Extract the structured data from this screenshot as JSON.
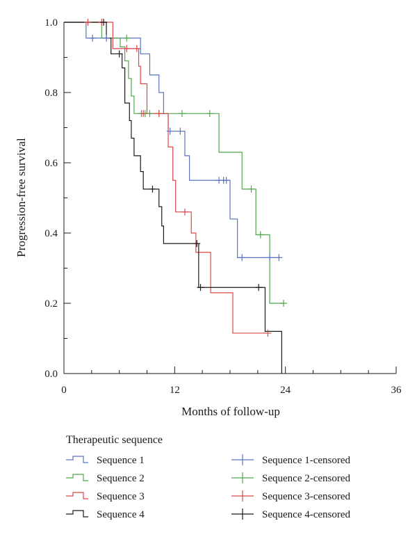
{
  "chart_data": {
    "type": "line",
    "subtype": "kaplan-meier step",
    "xlabel": "Months of follow-up",
    "ylabel": "Progression-free survival",
    "xlim": [
      0,
      36
    ],
    "ylim": [
      0,
      1
    ],
    "xticks": [
      0,
      12,
      24,
      36
    ],
    "xtick_labels": [
      "0",
      "12",
      "24",
      "36"
    ],
    "x_minor_ticks": [
      3,
      6,
      9,
      15,
      18,
      21,
      27,
      30,
      33
    ],
    "yticks": [
      0,
      0.2,
      0.4,
      0.6,
      0.8,
      1.0
    ],
    "ytick_labels": [
      "0.0",
      "0.2",
      "0.4",
      "0.6",
      "0.8",
      "1.0"
    ],
    "y_minor_ticks": [
      0.1,
      0.3,
      0.5,
      0.7,
      0.9
    ],
    "grid": false,
    "legend": {
      "title": "Therapeutic sequence",
      "placement": "bottom",
      "entries": [
        {
          "label": "Sequence 1",
          "series": 0,
          "kind": "line"
        },
        {
          "label": "Sequence 2",
          "series": 1,
          "kind": "line"
        },
        {
          "label": "Sequence 3",
          "series": 2,
          "kind": "line"
        },
        {
          "label": "Sequence 4",
          "series": 3,
          "kind": "line"
        },
        {
          "label": "Sequence 1-censored",
          "series": 0,
          "kind": "censor"
        },
        {
          "label": "Sequence 2-censored",
          "series": 1,
          "kind": "censor"
        },
        {
          "label": "Sequence 3-censored",
          "series": 2,
          "kind": "censor"
        },
        {
          "label": "Sequence 4-censored",
          "series": 3,
          "kind": "censor"
        }
      ]
    },
    "series": [
      {
        "color": "#5a73c4",
        "steps": [
          [
            0,
            1.0
          ],
          [
            2.4,
            0.955
          ],
          [
            8.3,
            0.91
          ],
          [
            9.3,
            0.85
          ],
          [
            10.3,
            0.8
          ],
          [
            10.8,
            0.74
          ],
          [
            11.3,
            0.69
          ],
          [
            13.1,
            0.62
          ],
          [
            13.6,
            0.55
          ],
          [
            18.0,
            0.44
          ],
          [
            18.8,
            0.33
          ],
          [
            23.3,
            0.33
          ]
        ],
        "censored": [
          [
            3.1,
            0.955
          ],
          [
            4.6,
            0.955
          ],
          [
            11.5,
            0.69
          ],
          [
            12.6,
            0.69
          ],
          [
            16.8,
            0.55
          ],
          [
            17.3,
            0.55
          ],
          [
            17.6,
            0.55
          ],
          [
            19.3,
            0.33
          ],
          [
            22.3,
            0.33
          ],
          [
            23.3,
            0.33
          ]
        ]
      },
      {
        "color": "#4ea84e",
        "steps": [
          [
            0,
            1.0
          ],
          [
            4.1,
            0.955
          ],
          [
            6.1,
            0.93
          ],
          [
            6.6,
            0.89
          ],
          [
            7.0,
            0.84
          ],
          [
            7.3,
            0.79
          ],
          [
            7.6,
            0.74
          ],
          [
            16.8,
            0.63
          ],
          [
            19.3,
            0.525
          ],
          [
            20.8,
            0.395
          ],
          [
            22.3,
            0.2
          ],
          [
            23.8,
            0.2
          ]
        ],
        "censored": [
          [
            6.8,
            0.955
          ],
          [
            8.4,
            0.74
          ],
          [
            8.8,
            0.74
          ],
          [
            9.3,
            0.74
          ],
          [
            10.3,
            0.74
          ],
          [
            12.8,
            0.74
          ],
          [
            15.8,
            0.74
          ],
          [
            20.3,
            0.525
          ],
          [
            21.3,
            0.395
          ],
          [
            23.8,
            0.2
          ]
        ]
      },
      {
        "color": "#d94848",
        "steps": [
          [
            0,
            1.0
          ],
          [
            5.3,
            0.925
          ],
          [
            8.1,
            0.875
          ],
          [
            8.3,
            0.825
          ],
          [
            9.0,
            0.74
          ],
          [
            11.3,
            0.645
          ],
          [
            11.8,
            0.55
          ],
          [
            12.1,
            0.46
          ],
          [
            13.8,
            0.4
          ],
          [
            14.3,
            0.345
          ],
          [
            15.9,
            0.23
          ],
          [
            18.3,
            0.115
          ],
          [
            22.1,
            0.115
          ]
        ],
        "censored": [
          [
            2.6,
            1.0
          ],
          [
            4.1,
            1.0
          ],
          [
            6.8,
            0.925
          ],
          [
            7.9,
            0.925
          ],
          [
            8.6,
            0.74
          ],
          [
            10.3,
            0.74
          ],
          [
            13.1,
            0.46
          ],
          [
            22.1,
            0.115
          ]
        ]
      },
      {
        "color": "#1a1a1a",
        "steps": [
          [
            0,
            1.0
          ],
          [
            4.6,
            0.955
          ],
          [
            5.1,
            0.91
          ],
          [
            6.3,
            0.87
          ],
          [
            6.6,
            0.77
          ],
          [
            7.1,
            0.72
          ],
          [
            7.3,
            0.67
          ],
          [
            7.6,
            0.62
          ],
          [
            8.3,
            0.575
          ],
          [
            8.6,
            0.525
          ],
          [
            10.3,
            0.475
          ],
          [
            10.6,
            0.42
          ],
          [
            10.8,
            0.37
          ],
          [
            14.6,
            0.245
          ],
          [
            21.8,
            0.12
          ],
          [
            23.6,
            0.12
          ],
          [
            23.6,
            0.0
          ]
        ],
        "censored": [
          [
            4.3,
            1.0
          ],
          [
            6.0,
            0.91
          ],
          [
            9.6,
            0.525
          ],
          [
            14.4,
            0.37
          ],
          [
            14.8,
            0.245
          ],
          [
            21.1,
            0.245
          ]
        ]
      }
    ]
  }
}
